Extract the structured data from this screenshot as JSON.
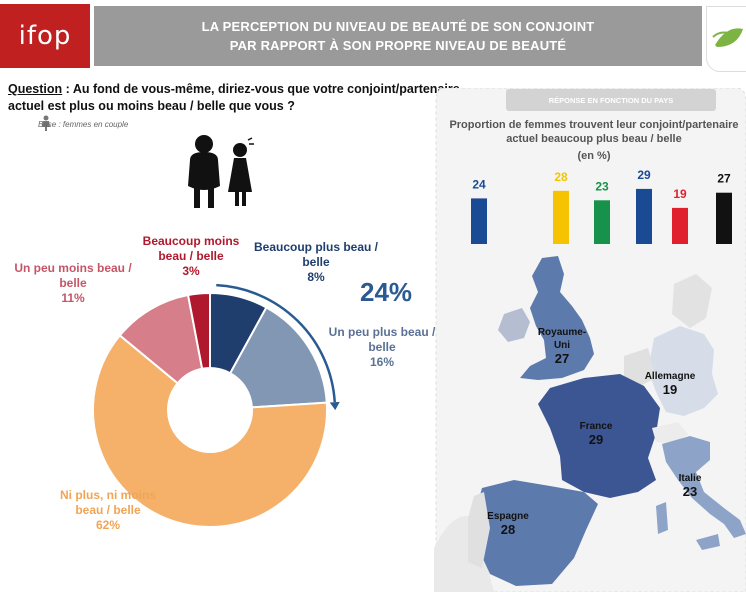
{
  "header": {
    "logo_text": "ifop",
    "title_line1": "LA PERCEPTION DU NIVEAU DE BEAUTÉ DE SON CONJOINT",
    "title_line2": "PAR RAPPORT À SON PROPRE NIVEAU DE BEAUTÉ"
  },
  "question": {
    "label": "Question",
    "text": " : Au fond de vous-même, diriez-vous que votre conjoint/partenaire actuel est plus ou moins beau / belle que vous ?",
    "base": "Base : femmes en couple"
  },
  "chart_data": [
    {
      "type": "pie",
      "subtype": "donut",
      "categories": [
        "Beaucoup plus beau / belle",
        "Un peu plus beau / belle",
        "Ni plus, ni moins beau / belle",
        "Un peu moins beau / belle",
        "Beaucoup moins beau / belle"
      ],
      "values": [
        8,
        16,
        62,
        11,
        3
      ],
      "labels": [
        "8%",
        "16%",
        "62%",
        "11%",
        "3%"
      ],
      "colors": [
        "#1f3e6e",
        "#8197b4",
        "#f5b16a",
        "#d67e8a",
        "#b0182d"
      ],
      "annotation": "24%",
      "annotation_color": "#2a5a92"
    },
    {
      "type": "bar",
      "title": "Proportion de femmes trouvent leur conjoint/partenaire actuel beaucoup plus beau / belle",
      "unit": "(en %)",
      "values": [
        24,
        28,
        23,
        29,
        19,
        27
      ],
      "value_labels": [
        "24",
        "28",
        "23",
        "29",
        "19",
        "27"
      ],
      "colors": [
        "#1a4a94",
        "#f5c300",
        "#16924a",
        "#1a4a94",
        "#e0202e",
        "#111111"
      ],
      "ylim": [
        0,
        40
      ]
    }
  ],
  "map": {
    "header": "RÉPONSE EN FONCTION DU PAYS",
    "countries": [
      {
        "name_line1": "Royaume-",
        "name_line2": "Uni",
        "value": "27"
      },
      {
        "name_line1": "Allemagne",
        "name_line2": "",
        "value": "19"
      },
      {
        "name_line1": "France",
        "name_line2": "",
        "value": "29"
      },
      {
        "name_line1": "Italie",
        "name_line2": "",
        "value": "23"
      },
      {
        "name_line1": "Espagne",
        "name_line2": "",
        "value": "28"
      }
    ]
  }
}
